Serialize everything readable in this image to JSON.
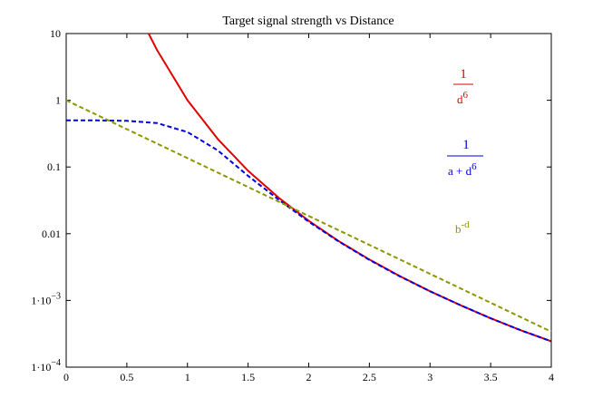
{
  "chart_data": {
    "type": "line",
    "title": "Target signal strength vs Distance",
    "xlabel": "",
    "ylabel": "",
    "xlim": [
      0,
      4
    ],
    "ylim": [
      0.0001,
      10
    ],
    "yscale": "log",
    "grid": false,
    "x_ticks": [
      0,
      0.5,
      1,
      1.5,
      2,
      2.5,
      3,
      3.5,
      4
    ],
    "x_tick_labels": [
      "0",
      "0.5",
      "1",
      "1.5",
      "2",
      "2.5",
      "3",
      "3.5",
      "4"
    ],
    "y_ticks": [
      {
        "value": 10,
        "mant": "10",
        "exp": ""
      },
      {
        "value": 1,
        "mant": "1",
        "exp": ""
      },
      {
        "value": 0.1,
        "mant": "0.1",
        "exp": ""
      },
      {
        "value": 0.01,
        "mant": "0.01",
        "exp": ""
      },
      {
        "value": 0.001,
        "mant": "1·10",
        "exp": "−3"
      },
      {
        "value": 0.0001,
        "mant": "1·10",
        "exp": "−4"
      }
    ],
    "series": [
      {
        "color": "#e00000",
        "dash": "solid",
        "x": [
          0.68,
          0.75,
          1.0,
          1.25,
          1.5,
          1.75,
          2.0,
          2.25,
          2.5,
          2.75,
          3.0,
          3.25,
          3.5,
          3.75,
          4.0
        ],
        "y": [
          10.1,
          5.62,
          1.0,
          0.262,
          0.0878,
          0.0348,
          0.0156,
          0.0077,
          0.0041,
          0.00232,
          0.00137,
          0.00085,
          0.00054,
          0.000356,
          0.000244
        ]
      },
      {
        "color": "#0000e0",
        "dash": "dashed",
        "x": [
          0,
          0.25,
          0.5,
          0.75,
          1.0,
          1.25,
          1.5,
          1.75,
          2.0,
          2.25,
          2.5,
          2.75,
          3.0,
          3.25,
          3.5,
          3.75,
          4.0
        ],
        "y": [
          0.5,
          0.5,
          0.492,
          0.455,
          0.333,
          0.177,
          0.0735,
          0.0325,
          0.0151,
          0.0076,
          0.00405,
          0.0023,
          0.00137,
          0.00085,
          0.00054,
          0.000356,
          0.000244
        ]
      },
      {
        "color": "#8c9600",
        "dash": "dashed",
        "x": [
          0,
          4
        ],
        "y": [
          1.0,
          0.00034
        ]
      }
    ],
    "annotations": [
      {
        "type": "fraction",
        "numerator": "1",
        "denominator": "d",
        "den_sup": "6",
        "color": "#e00000"
      },
      {
        "type": "fraction",
        "numerator": "1",
        "denominator": "a + d",
        "den_sup": "6",
        "color": "#0000e0"
      },
      {
        "type": "power",
        "base": "b",
        "sup": "-d",
        "color": "#8c9600"
      }
    ]
  }
}
